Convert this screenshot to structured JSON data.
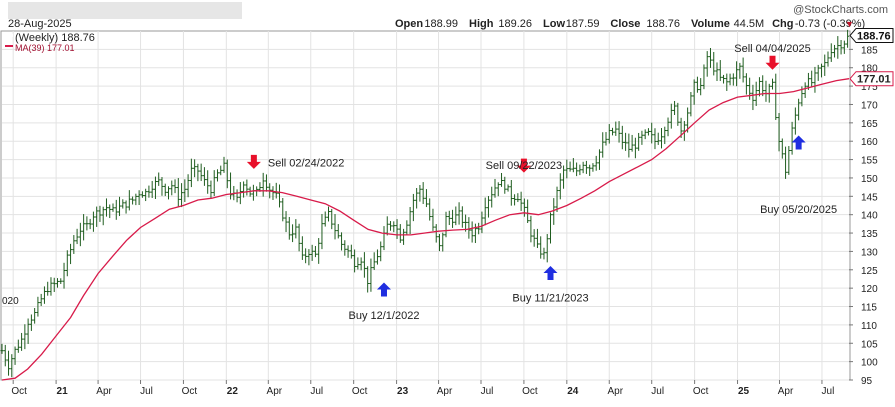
{
  "header": {
    "date": "28-Aug-2025",
    "copyright": "@StockCharts.com",
    "ohlc": [
      {
        "label": "Open",
        "value": "188.99"
      },
      {
        "label": "High",
        "value": "189.26"
      },
      {
        "label": "Low",
        "value": "187.59"
      },
      {
        "label": "Close",
        "value": "188.76"
      },
      {
        "label": "Volume",
        "value": "44.5M"
      },
      {
        "label": "Chg",
        "value": "-0.73 (-0.39%)"
      }
    ],
    "change_marker": "▼"
  },
  "legend": {
    "price_label": "(Weekly) 188.76",
    "ma_label": "MA(39) 177.01"
  },
  "colors": {
    "bars": "#1e5c1e",
    "ma": "#d81b4a",
    "sell_arrow": "#e8102a",
    "buy_arrow": "#1f2ee0",
    "grid": "#e3e3e3"
  },
  "chart_data": {
    "type": "ohlc-bar",
    "ylim": [
      95,
      190
    ],
    "y_ticks": [
      95,
      100,
      105,
      110,
      115,
      120,
      125,
      130,
      135,
      140,
      145,
      150,
      155,
      160,
      165,
      170,
      175,
      180,
      185
    ],
    "x_range": [
      "2020-09-07",
      "2025-08-28"
    ],
    "x_ticks": [
      {
        "date": "2020-10-01",
        "label": "Oct",
        "bold": false
      },
      {
        "date": "2021-01-01",
        "label": "21",
        "bold": true
      },
      {
        "date": "2021-04-01",
        "label": "Apr",
        "bold": false
      },
      {
        "date": "2021-07-01",
        "label": "Jul",
        "bold": false
      },
      {
        "date": "2021-10-01",
        "label": "Oct",
        "bold": false
      },
      {
        "date": "2022-01-01",
        "label": "22",
        "bold": true
      },
      {
        "date": "2022-04-01",
        "label": "Apr",
        "bold": false
      },
      {
        "date": "2022-07-01",
        "label": "Jul",
        "bold": false
      },
      {
        "date": "2022-10-01",
        "label": "Oct",
        "bold": false
      },
      {
        "date": "2023-01-01",
        "label": "23",
        "bold": true
      },
      {
        "date": "2023-04-01",
        "label": "Apr",
        "bold": false
      },
      {
        "date": "2023-07-01",
        "label": "Jul",
        "bold": false
      },
      {
        "date": "2023-10-01",
        "label": "Oct",
        "bold": false
      },
      {
        "date": "2024-01-01",
        "label": "24",
        "bold": true
      },
      {
        "date": "2024-04-01",
        "label": "Apr",
        "bold": false
      },
      {
        "date": "2024-07-01",
        "label": "Jul",
        "bold": false
      },
      {
        "date": "2024-10-01",
        "label": "Oct",
        "bold": false
      },
      {
        "date": "2025-01-01",
        "label": "25",
        "bold": true
      },
      {
        "date": "2025-04-01",
        "label": "Apr",
        "bold": false
      },
      {
        "date": "2025-07-01",
        "label": "Jul",
        "bold": false
      }
    ],
    "left_edge_label": "020",
    "last_price": {
      "value": 188.76,
      "label": "188.76"
    },
    "last_ma": {
      "value": 177.01,
      "label": "177.01"
    },
    "price_close": [
      [
        "2020-09-07",
        103
      ],
      [
        "2020-09-21",
        99
      ],
      [
        "2020-10-05",
        103
      ],
      [
        "2020-10-19",
        106
      ],
      [
        "2020-11-02",
        111
      ],
      [
        "2020-11-16",
        113
      ],
      [
        "2020-11-30",
        117
      ],
      [
        "2020-12-14",
        120
      ],
      [
        "2020-12-28",
        121
      ],
      [
        "2021-01-11",
        122
      ],
      [
        "2021-01-25",
        128
      ],
      [
        "2021-02-08",
        133
      ],
      [
        "2021-02-22",
        136
      ],
      [
        "2021-03-08",
        137
      ],
      [
        "2021-03-22",
        140
      ],
      [
        "2021-04-05",
        141
      ],
      [
        "2021-04-19",
        142
      ],
      [
        "2021-05-03",
        141
      ],
      [
        "2021-05-17",
        142
      ],
      [
        "2021-05-31",
        143
      ],
      [
        "2021-06-14",
        144
      ],
      [
        "2021-06-28",
        146
      ],
      [
        "2021-07-12",
        146
      ],
      [
        "2021-07-26",
        148
      ],
      [
        "2021-08-09",
        149
      ],
      [
        "2021-08-23",
        147
      ],
      [
        "2021-09-06",
        148
      ],
      [
        "2021-09-20",
        145
      ],
      [
        "2021-10-04",
        147
      ],
      [
        "2021-10-18",
        152
      ],
      [
        "2021-11-01",
        152
      ],
      [
        "2021-11-15",
        149
      ],
      [
        "2021-11-29",
        147
      ],
      [
        "2021-12-13",
        151
      ],
      [
        "2021-12-27",
        153
      ],
      [
        "2022-01-10",
        146
      ],
      [
        "2022-01-24",
        144
      ],
      [
        "2022-02-07",
        149
      ],
      [
        "2022-02-21",
        146
      ],
      [
        "2022-03-07",
        146
      ],
      [
        "2022-03-21",
        150
      ],
      [
        "2022-04-04",
        147
      ],
      [
        "2022-04-18",
        145
      ],
      [
        "2022-05-02",
        140
      ],
      [
        "2022-05-16",
        135
      ],
      [
        "2022-05-30",
        136
      ],
      [
        "2022-06-13",
        128
      ],
      [
        "2022-06-27",
        130
      ],
      [
        "2022-07-11",
        129
      ],
      [
        "2022-07-25",
        137
      ],
      [
        "2022-08-08",
        140
      ],
      [
        "2022-08-22",
        136
      ],
      [
        "2022-09-05",
        132
      ],
      [
        "2022-09-19",
        130
      ],
      [
        "2022-10-03",
        127
      ],
      [
        "2022-10-17",
        128
      ],
      [
        "2022-10-31",
        122
      ],
      [
        "2022-11-14",
        127
      ],
      [
        "2022-11-28",
        131
      ],
      [
        "2022-12-12",
        137
      ],
      [
        "2022-12-26",
        138
      ],
      [
        "2023-01-09",
        134
      ],
      [
        "2023-01-23",
        138
      ],
      [
        "2023-02-06",
        144
      ],
      [
        "2023-02-20",
        147
      ],
      [
        "2023-03-06",
        143
      ],
      [
        "2023-03-20",
        136
      ],
      [
        "2023-04-03",
        131
      ],
      [
        "2023-04-17",
        139
      ],
      [
        "2023-05-01",
        139
      ],
      [
        "2023-05-15",
        140
      ],
      [
        "2023-05-29",
        137
      ],
      [
        "2023-06-12",
        135
      ],
      [
        "2023-06-26",
        137
      ],
      [
        "2023-07-10",
        143
      ],
      [
        "2023-07-24",
        146
      ],
      [
        "2023-08-07",
        149
      ],
      [
        "2023-08-21",
        148
      ],
      [
        "2023-09-04",
        145
      ],
      [
        "2023-09-18",
        145
      ],
      [
        "2023-10-02",
        141
      ],
      [
        "2023-10-16",
        135
      ],
      [
        "2023-10-30",
        131
      ],
      [
        "2023-11-13",
        129
      ],
      [
        "2023-11-27",
        139
      ],
      [
        "2023-12-11",
        146
      ],
      [
        "2023-12-25",
        152
      ],
      [
        "2024-01-08",
        152
      ],
      [
        "2024-01-22",
        152
      ],
      [
        "2024-02-05",
        154
      ],
      [
        "2024-02-19",
        153
      ],
      [
        "2024-03-04",
        155
      ],
      [
        "2024-03-18",
        159
      ],
      [
        "2024-04-01",
        162
      ],
      [
        "2024-04-15",
        163
      ],
      [
        "2024-04-29",
        160
      ],
      [
        "2024-05-13",
        158
      ],
      [
        "2024-05-27",
        159
      ],
      [
        "2024-06-10",
        161
      ],
      [
        "2024-06-24",
        162
      ],
      [
        "2024-07-08",
        160
      ],
      [
        "2024-07-22",
        162
      ],
      [
        "2024-08-05",
        166
      ],
      [
        "2024-08-19",
        169
      ],
      [
        "2024-09-02",
        163
      ],
      [
        "2024-09-16",
        168
      ],
      [
        "2024-09-30",
        175
      ],
      [
        "2024-10-14",
        175
      ],
      [
        "2024-10-28",
        183
      ],
      [
        "2024-11-11",
        180
      ],
      [
        "2024-11-25",
        177
      ],
      [
        "2024-12-09",
        176
      ],
      [
        "2024-12-23",
        178
      ],
      [
        "2025-01-06",
        180
      ],
      [
        "2025-01-20",
        175
      ],
      [
        "2025-02-03",
        172
      ],
      [
        "2025-02-17",
        176
      ],
      [
        "2025-03-03",
        173
      ],
      [
        "2025-03-17",
        175
      ],
      [
        "2025-03-31",
        160
      ],
      [
        "2025-04-14",
        152
      ],
      [
        "2025-04-28",
        163
      ],
      [
        "2025-05-12",
        171
      ],
      [
        "2025-05-26",
        176
      ],
      [
        "2025-06-09",
        176
      ],
      [
        "2025-06-23",
        179
      ],
      [
        "2025-07-07",
        181
      ],
      [
        "2025-07-21",
        185
      ],
      [
        "2025-08-04",
        186
      ],
      [
        "2025-08-18",
        187
      ],
      [
        "2025-08-28",
        188.76
      ]
    ],
    "moving_average": [
      [
        "2020-09-07",
        95
      ],
      [
        "2020-10-05",
        95.5
      ],
      [
        "2020-11-01",
        98
      ],
      [
        "2020-12-01",
        102
      ],
      [
        "2021-01-01",
        107
      ],
      [
        "2021-02-01",
        112
      ],
      [
        "2021-03-01",
        118
      ],
      [
        "2021-04-01",
        124
      ],
      [
        "2021-05-01",
        128.5
      ],
      [
        "2021-06-01",
        133
      ],
      [
        "2021-07-01",
        136.5
      ],
      [
        "2021-08-01",
        139
      ],
      [
        "2021-09-01",
        141.5
      ],
      [
        "2021-10-01",
        142.5
      ],
      [
        "2021-11-01",
        144
      ],
      [
        "2021-12-01",
        144.5
      ],
      [
        "2022-01-01",
        145.5
      ],
      [
        "2022-02-01",
        146
      ],
      [
        "2022-03-01",
        146.5
      ],
      [
        "2022-04-01",
        146.5
      ],
      [
        "2022-05-01",
        146
      ],
      [
        "2022-06-01",
        145
      ],
      [
        "2022-07-01",
        144
      ],
      [
        "2022-08-01",
        143
      ],
      [
        "2022-09-01",
        141
      ],
      [
        "2022-10-01",
        138.5
      ],
      [
        "2022-11-01",
        136
      ],
      [
        "2022-12-01",
        135
      ],
      [
        "2023-01-01",
        134.5
      ],
      [
        "2023-02-01",
        134.5
      ],
      [
        "2023-03-01",
        135
      ],
      [
        "2023-04-01",
        135.5
      ],
      [
        "2023-05-01",
        135.8
      ],
      [
        "2023-06-01",
        136
      ],
      [
        "2023-07-01",
        136.8
      ],
      [
        "2023-08-01",
        138.5
      ],
      [
        "2023-09-01",
        140
      ],
      [
        "2023-10-01",
        140.5
      ],
      [
        "2023-11-01",
        140
      ],
      [
        "2023-12-01",
        141
      ],
      [
        "2024-01-01",
        142.5
      ],
      [
        "2024-02-01",
        144.5
      ],
      [
        "2024-03-01",
        146.5
      ],
      [
        "2024-04-01",
        149
      ],
      [
        "2024-05-01",
        151
      ],
      [
        "2024-06-01",
        153
      ],
      [
        "2024-07-01",
        155
      ],
      [
        "2024-08-01",
        158
      ],
      [
        "2024-09-01",
        161.5
      ],
      [
        "2024-10-01",
        165
      ],
      [
        "2024-11-01",
        168.5
      ],
      [
        "2024-12-01",
        170.5
      ],
      [
        "2025-01-01",
        172
      ],
      [
        "2025-02-01",
        172.5
      ],
      [
        "2025-03-01",
        173
      ],
      [
        "2025-04-01",
        173
      ],
      [
        "2025-05-01",
        173.5
      ],
      [
        "2025-06-01",
        174.5
      ],
      [
        "2025-07-01",
        175.5
      ],
      [
        "2025-08-01",
        176.5
      ],
      [
        "2025-08-28",
        177.01
      ]
    ],
    "annotations": [
      {
        "type": "sell",
        "date": "2022-03-01",
        "price": 153,
        "label": "Sell 02/24/2022",
        "label_price": 154.2,
        "label_side": "right"
      },
      {
        "type": "buy",
        "date": "2022-12-05",
        "price": 121,
        "label": "Buy 12/1/2022",
        "label_price": 112.7,
        "label_side": "center"
      },
      {
        "type": "sell",
        "date": "2023-10-01",
        "price": 152,
        "label": "Sell 09/22/2023",
        "label_price": 153.5,
        "label_side": "center"
      },
      {
        "type": "buy",
        "date": "2023-11-27",
        "price": 125.5,
        "label": "Buy 11/21/2023",
        "label_price": 117.5,
        "label_side": "center"
      },
      {
        "type": "sell",
        "date": "2025-03-17",
        "price": 180,
        "label": "Sell 04/04/2025",
        "label_price": 185.4,
        "label_side": "center"
      },
      {
        "type": "buy",
        "date": "2025-05-12",
        "price": 161,
        "label": "Buy 05/20/2025",
        "label_price": 141.5,
        "label_side": "center"
      }
    ]
  }
}
